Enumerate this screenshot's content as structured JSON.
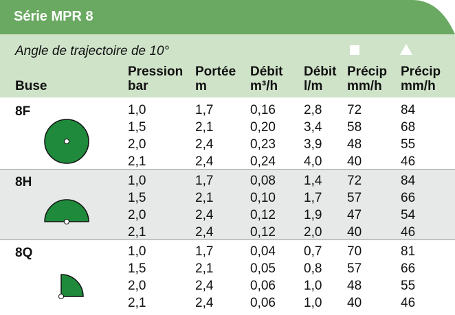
{
  "header": {
    "title": "Série MPR 8"
  },
  "subtitle": "Angle de trajectoire de 10°",
  "table": {
    "columns": [
      {
        "name": "Buse"
      },
      {
        "name": "Pression",
        "unit": "bar"
      },
      {
        "name": "Portée",
        "unit": "m"
      },
      {
        "name": "Débit",
        "unit": "m³/h"
      },
      {
        "name": "Débit",
        "unit": "l/m"
      },
      {
        "name": "Précip",
        "unit": "mm/h"
      },
      {
        "name": "Précip",
        "unit": "mm/h"
      }
    ],
    "groups": [
      {
        "label": "8F",
        "rows": [
          [
            "1,0",
            "1,7",
            "0,16",
            "2,8",
            "72",
            "84"
          ],
          [
            "1,5",
            "2,1",
            "0,20",
            "3,4",
            "58",
            "68"
          ],
          [
            "2,0",
            "2,4",
            "0,23",
            "3,9",
            "48",
            "55"
          ],
          [
            "2,1",
            "2,4",
            "0,24",
            "4,0",
            "40",
            "46"
          ]
        ]
      },
      {
        "label": "8H",
        "rows": [
          [
            "1,0",
            "1,7",
            "0,08",
            "1,4",
            "72",
            "84"
          ],
          [
            "1,5",
            "2,1",
            "0,10",
            "1,7",
            "57",
            "66"
          ],
          [
            "2,0",
            "2,4",
            "0,12",
            "1,9",
            "47",
            "54"
          ],
          [
            "2,1",
            "2,4",
            "0,12",
            "2,0",
            "40",
            "46"
          ]
        ]
      },
      {
        "label": "8Q",
        "rows": [
          [
            "1,0",
            "1,7",
            "0,04",
            "0,7",
            "70",
            "81"
          ],
          [
            "1,5",
            "2,1",
            "0,05",
            "0,8",
            "57",
            "66"
          ],
          [
            "2,0",
            "2,4",
            "0,06",
            "1,0",
            "48",
            "55"
          ],
          [
            "2,1",
            "2,4",
            "0,06",
            "1,0",
            "40",
            "46"
          ]
        ]
      }
    ]
  }
}
